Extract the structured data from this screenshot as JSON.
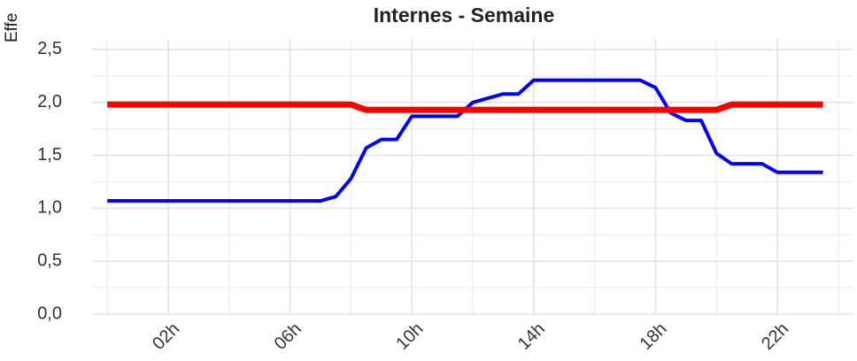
{
  "chart_data": {
    "type": "line",
    "title": "Internes - Semaine",
    "y_label": "Effe",
    "x": [
      0,
      0.5,
      1,
      1.5,
      2,
      2.5,
      3,
      3.5,
      4,
      4.5,
      5,
      5.5,
      6,
      6.5,
      7,
      7.5,
      8,
      8.5,
      9,
      9.5,
      10,
      10.5,
      11,
      11.5,
      12,
      12.5,
      13,
      13.5,
      14,
      14.5,
      15,
      15.5,
      16,
      16.5,
      17,
      17.5,
      18,
      18.5,
      19,
      19.5,
      20,
      20.5,
      21,
      21.5,
      22,
      22.5,
      23,
      23.5
    ],
    "series": [
      {
        "color": "#0000ff",
        "values": [
          1.07,
          1.07,
          1.07,
          1.07,
          1.07,
          1.07,
          1.07,
          1.07,
          1.07,
          1.07,
          1.07,
          1.07,
          1.07,
          1.07,
          1.07,
          1.11,
          1.28,
          1.57,
          1.65,
          1.65,
          1.87,
          1.87,
          1.87,
          1.87,
          2.0,
          2.04,
          2.08,
          2.08,
          2.21,
          2.21,
          2.21,
          2.21,
          2.21,
          2.21,
          2.21,
          2.21,
          2.14,
          1.9,
          1.83,
          1.83,
          1.52,
          1.42,
          1.42,
          1.42,
          1.34,
          1.34,
          1.34,
          1.34
        ]
      },
      {
        "color": "#ff0000",
        "values": [
          1.98,
          1.98,
          1.98,
          1.98,
          1.98,
          1.98,
          1.98,
          1.98,
          1.98,
          1.98,
          1.98,
          1.98,
          1.98,
          1.98,
          1.98,
          1.98,
          1.98,
          1.93,
          1.93,
          1.93,
          1.93,
          1.93,
          1.93,
          1.93,
          1.93,
          1.93,
          1.93,
          1.93,
          1.93,
          1.93,
          1.93,
          1.93,
          1.93,
          1.93,
          1.93,
          1.93,
          1.93,
          1.93,
          1.93,
          1.93,
          1.93,
          1.98,
          1.98,
          1.98,
          1.98,
          1.98,
          1.98,
          1.98
        ]
      }
    ],
    "xlim": [
      -0.5,
      24.5
    ],
    "ylim": [
      0,
      2.6
    ],
    "xticks": [
      {
        "value": 2,
        "label": "02h"
      },
      {
        "value": 6,
        "label": "06h"
      },
      {
        "value": 10,
        "label": "10h"
      },
      {
        "value": 14,
        "label": "14h"
      },
      {
        "value": 18,
        "label": "18h"
      },
      {
        "value": 22,
        "label": "22h"
      }
    ],
    "yticks": [
      {
        "value": 0,
        "label": "0,0"
      },
      {
        "value": 0.5,
        "label": "0,5"
      },
      {
        "value": 1,
        "label": "1,0"
      },
      {
        "value": 1.5,
        "label": "1,5"
      },
      {
        "value": 2,
        "label": "2,0"
      },
      {
        "value": 2.5,
        "label": "2,5"
      }
    ],
    "grid": true
  }
}
